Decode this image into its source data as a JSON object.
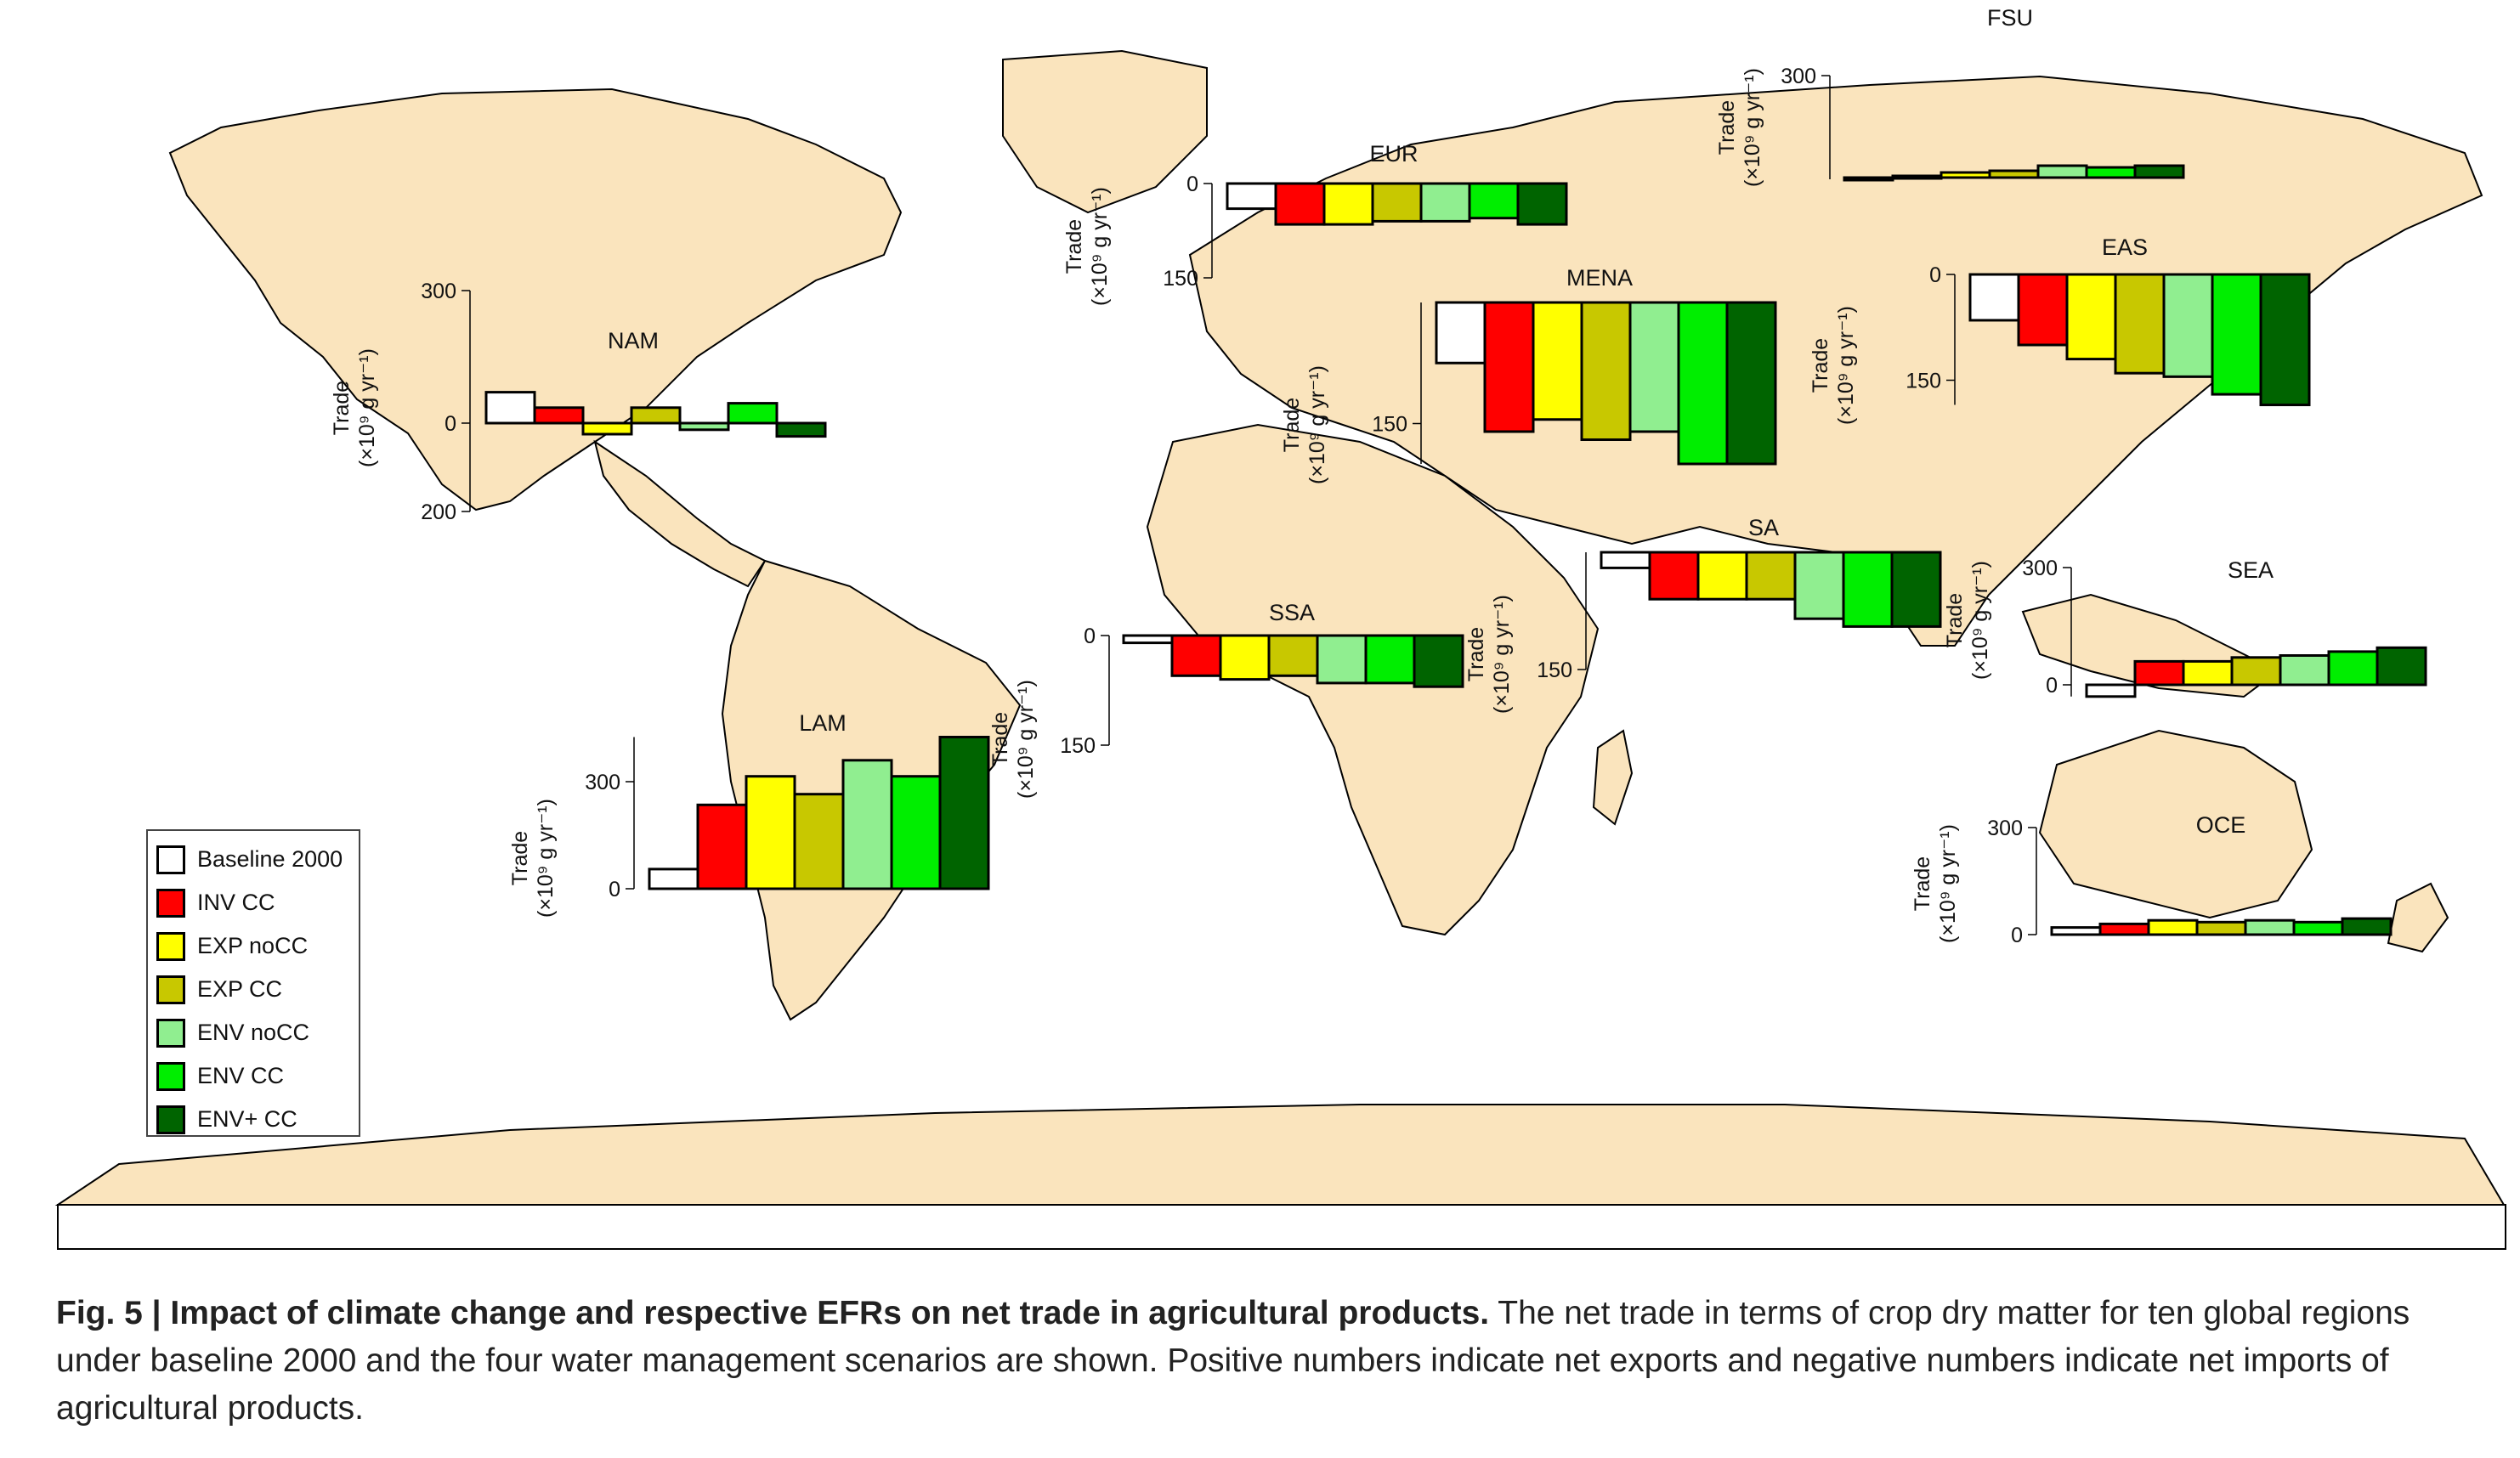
{
  "colors": {
    "land": "#fae4bd",
    "coast": "#000000",
    "baseline": "#ffffff",
    "inv_cc": "#ff0000",
    "exp_nocc": "#ffff00",
    "exp_cc": "#c8c800",
    "env_nocc": "#90ee90",
    "env_cc": "#00ee00",
    "envplus_cc": "#006400"
  },
  "legend": [
    {
      "label": "Baseline 2000",
      "color": "#ffffff"
    },
    {
      "label": "INV CC",
      "color": "#ff0000"
    },
    {
      "label": "EXP noCC",
      "color": "#ffff00"
    },
    {
      "label": "EXP CC",
      "color": "#c8c800"
    },
    {
      "label": "ENV noCC",
      "color": "#90ee90"
    },
    {
      "label": "ENV CC",
      "color": "#00ee00"
    },
    {
      "label": "ENV+ CC",
      "color": "#006400"
    }
  ],
  "caption": {
    "figure_label": "Fig. 5 | Impact of climate change and respective EFRs on net trade in agricultural products.",
    "text": " The net trade in terms of crop dry matter for ten global regions under baseline 2000 and the four water management scenarios are shown. Positive numbers indicate net exports and negative numbers indicate net imports of agricultural products."
  },
  "chart_data": {
    "type": "bar",
    "categories": [
      "Baseline 2000",
      "INV CC",
      "EXP noCC",
      "EXP CC",
      "ENV noCC",
      "ENV CC",
      "ENV+ CC"
    ],
    "ylabel_lines": [
      "Trade",
      "(×10⁹ g yr⁻¹)"
    ],
    "regions": [
      {
        "name": "NAM",
        "values": [
          70,
          35,
          -25,
          35,
          -15,
          45,
          -30
        ],
        "ticks": [
          300,
          0,
          200
        ],
        "tick_values": [
          300,
          0,
          -200
        ]
      },
      {
        "name": "EUR",
        "values": [
          -40,
          -65,
          -65,
          -60,
          -60,
          -55,
          -65
        ],
        "ticks": [
          0,
          150
        ],
        "tick_values": [
          0,
          -150
        ]
      },
      {
        "name": "FSU",
        "values": [
          -5,
          5,
          15,
          20,
          35,
          30,
          35
        ],
        "ticks": [
          300
        ],
        "tick_values": [
          300
        ]
      },
      {
        "name": "MENA",
        "values": [
          -75,
          -160,
          -145,
          -170,
          -160,
          -200,
          -200
        ],
        "ticks": [
          150
        ],
        "tick_values": [
          -150
        ]
      },
      {
        "name": "EAS",
        "values": [
          -65,
          -100,
          -120,
          -140,
          -145,
          -170,
          -185
        ],
        "ticks": [
          0,
          150
        ],
        "tick_values": [
          0,
          -150
        ]
      },
      {
        "name": "SA",
        "values": [
          -20,
          -60,
          -60,
          -60,
          -85,
          -95,
          -95
        ],
        "ticks": [
          150
        ],
        "tick_values": [
          -150
        ]
      },
      {
        "name": "SSA",
        "values": [
          -10,
          -55,
          -60,
          -55,
          -65,
          -65,
          -70
        ],
        "ticks": [
          0,
          150
        ],
        "tick_values": [
          0,
          -150
        ]
      },
      {
        "name": "SEA",
        "values": [
          -30,
          60,
          60,
          70,
          75,
          85,
          95
        ],
        "ticks": [
          300,
          0
        ],
        "tick_values": [
          300,
          0
        ]
      },
      {
        "name": "LAM",
        "values": [
          55,
          235,
          315,
          265,
          360,
          315,
          425
        ],
        "ticks": [
          300,
          0
        ],
        "tick_values": [
          300,
          0
        ]
      },
      {
        "name": "OCE",
        "values": [
          20,
          30,
          40,
          35,
          40,
          35,
          45
        ],
        "ticks": [
          300,
          0
        ],
        "tick_values": [
          300,
          0
        ]
      }
    ]
  }
}
